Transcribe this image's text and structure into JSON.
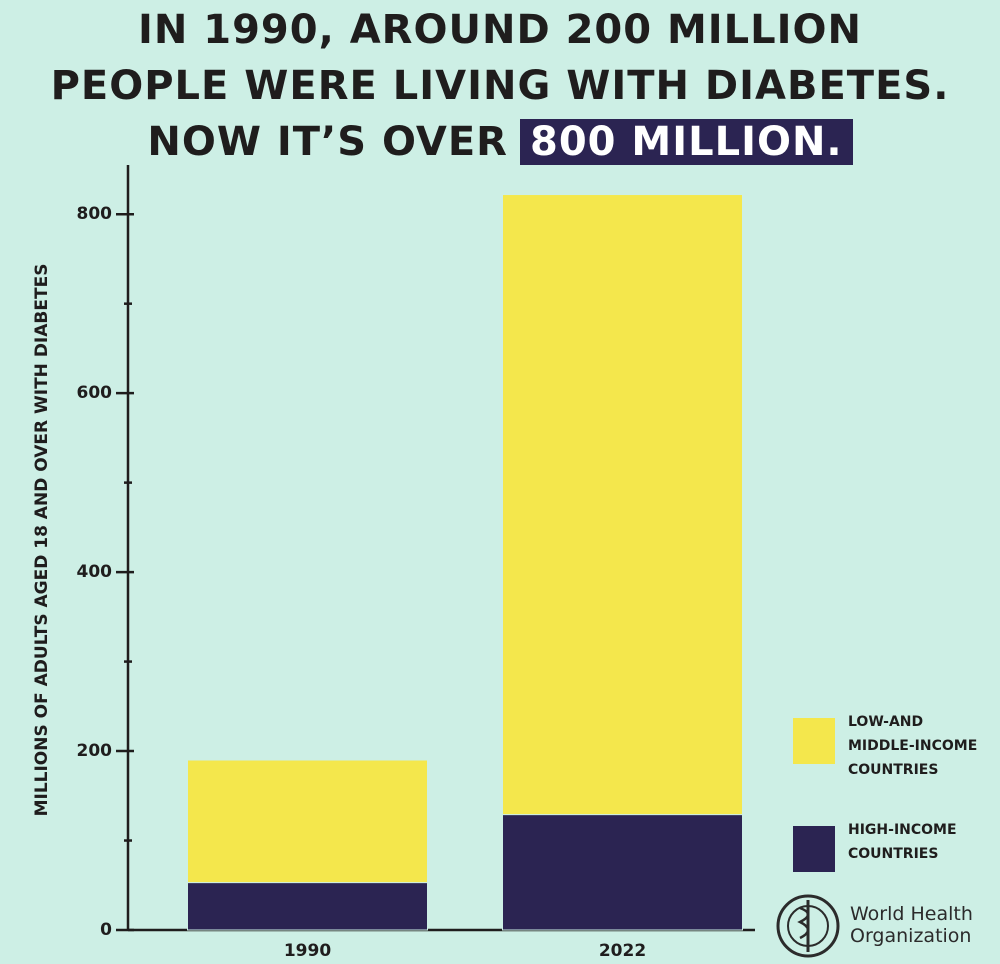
{
  "chart_data": {
    "type": "stacked-bar",
    "title_lines": [
      "IN 1990, AROUND 200 MILLION",
      "PEOPLE WERE LIVING WITH DIABETES.",
      "NOW IT’S OVER"
    ],
    "title_highlight": "800 MILLION.",
    "y_label": "MILLIONS OF ADULTS AGED 18 AND OVER WITH DIABETES",
    "categories": [
      "1990",
      "2022"
    ],
    "series": [
      {
        "name": "HIGH-INCOME COUNTRIES",
        "color": "#2b2452",
        "values": [
          53,
          129
        ]
      },
      {
        "name": "LOW-AND MIDDLE-INCOME COUNTRIES",
        "color": "#f4e74c",
        "values": [
          137,
          693
        ]
      }
    ],
    "ylim": [
      0,
      855
    ],
    "yticks": [
      0,
      200,
      400,
      600,
      800
    ],
    "yminorticks": [
      100,
      300,
      500,
      700
    ],
    "legend": "right"
  },
  "logo": {
    "lines": [
      "World Health",
      "Organization"
    ]
  }
}
